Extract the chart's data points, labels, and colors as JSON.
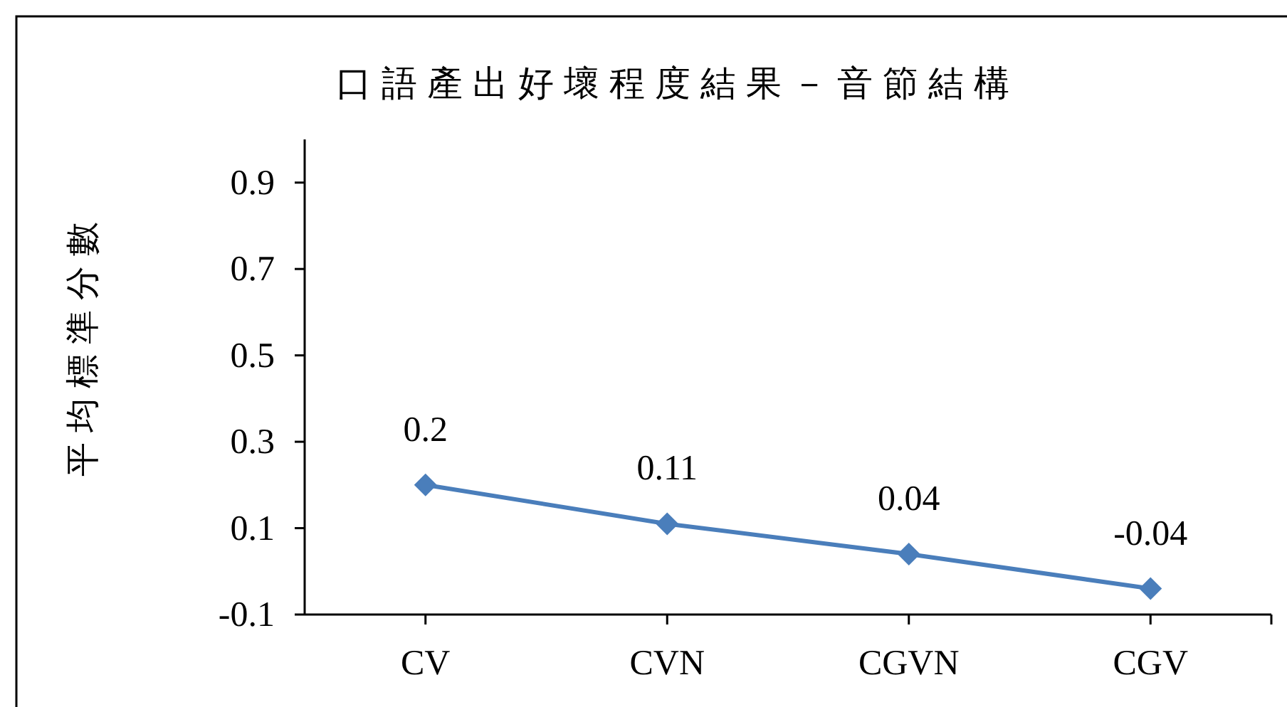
{
  "chart_data": {
    "type": "line",
    "title": "口語產出好壞程度結果－音節結構",
    "ylabel": "平均標準分數",
    "categories": [
      "CV",
      "CVN",
      "CGVN",
      "CGV"
    ],
    "series": [
      {
        "color": "#4a7ebb",
        "values": [
          0.2,
          0.11,
          0.04,
          -0.04
        ]
      }
    ],
    "ylim": [
      -0.1,
      1.0
    ],
    "yticks": [
      -0.1,
      0.1,
      0.3,
      0.5,
      0.7,
      0.9
    ],
    "data_labels": true,
    "marker": "diamond",
    "line_style": "solid"
  }
}
